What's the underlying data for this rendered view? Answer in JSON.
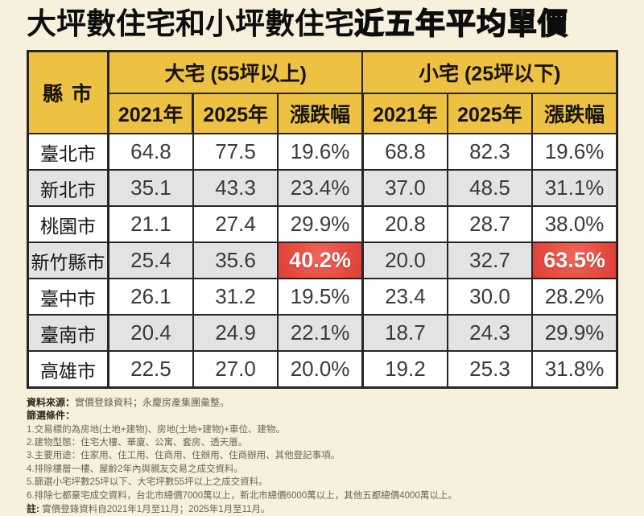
{
  "title": {
    "part1": "大坪數住宅和小坪數住宅",
    "part2": "近五年平均單價"
  },
  "table": {
    "corner": "縣 市",
    "group1": "大宅 (55坪以上)",
    "group2": "小宅 (25坪以下)",
    "cols": {
      "y1": "2021年",
      "y2": "2025年",
      "chg": "漲跌幅"
    },
    "rows": [
      {
        "city": "臺北市",
        "values": [
          "64.8",
          "77.5",
          "19.6%",
          "68.8",
          "82.3",
          "19.6%"
        ]
      },
      {
        "city": "新北市",
        "values": [
          "35.1",
          "43.3",
          "23.4%",
          "37.0",
          "48.5",
          "31.1%"
        ]
      },
      {
        "city": "桃園市",
        "values": [
          "21.1",
          "27.4",
          "29.9%",
          "20.8",
          "28.7",
          "38.0%"
        ]
      },
      {
        "city": "新竹縣市",
        "values": [
          "25.4",
          "35.6",
          "40.2%",
          "20.0",
          "32.7",
          "63.5%"
        ],
        "highlight": [
          2,
          5
        ]
      },
      {
        "city": "臺中市",
        "values": [
          "26.1",
          "31.2",
          "19.5%",
          "23.4",
          "30.0",
          "28.2%"
        ]
      },
      {
        "city": "臺南市",
        "values": [
          "20.4",
          "24.9",
          "22.1%",
          "18.7",
          "24.3",
          "29.9%"
        ]
      },
      {
        "city": "高雄市",
        "values": [
          "22.5",
          "27.0",
          "20.0%",
          "19.2",
          "25.3",
          "31.8%"
        ]
      }
    ]
  },
  "chart_data": {
    "type": "table",
    "title": "大坪數住宅和小坪數住宅近五年平均單價",
    "column_groups": [
      "大宅 (55坪以上)",
      "小宅 (25坪以下)"
    ],
    "categories": [
      "臺北市",
      "新北市",
      "桃園市",
      "新竹縣市",
      "臺中市",
      "臺南市",
      "高雄市"
    ],
    "series": [
      {
        "name": "大宅2021年",
        "values": [
          64.8,
          35.1,
          21.1,
          25.4,
          26.1,
          20.4,
          22.5
        ]
      },
      {
        "name": "大宅2025年",
        "values": [
          77.5,
          43.3,
          27.4,
          35.6,
          31.2,
          24.9,
          27.0
        ]
      },
      {
        "name": "大宅漲跌幅%",
        "values": [
          19.6,
          23.4,
          29.9,
          40.2,
          19.5,
          22.1,
          20.0
        ]
      },
      {
        "name": "小宅2021年",
        "values": [
          68.8,
          37.0,
          20.8,
          20.0,
          23.4,
          18.7,
          19.2
        ]
      },
      {
        "name": "小宅2025年",
        "values": [
          82.3,
          48.5,
          28.7,
          32.7,
          30.0,
          24.3,
          25.3
        ]
      },
      {
        "name": "小宅漲跌幅%",
        "values": [
          19.6,
          31.1,
          38.0,
          63.5,
          28.2,
          29.9,
          31.8
        ]
      }
    ],
    "highlighted_cells": [
      {
        "city": "新竹縣市",
        "series": "大宅漲跌幅%",
        "value": "40.2%"
      },
      {
        "city": "新竹縣市",
        "series": "小宅漲跌幅%",
        "value": "63.5%"
      }
    ]
  },
  "footer": {
    "source_label": "資料來源：",
    "source_text": "實價登錄資料；永慶房產集團彙整。",
    "conditions_label": "篩選條件：",
    "conditions": [
      "1.交易標的為房地(土地+建物)、房地(土地+建物)+車位、建物。",
      "2.建物型態：住宅大樓、華廈、公寓、套房、透天厝。",
      "3.主要用途：住家用、住工用、住商用、住辦用、住商辦用、其他登記事項。",
      "4.排除樓層一樓、屋齡2年內與親友交易之成交資料。",
      "5.篩選小宅坪數25坪以下、大宅坪數55坪以上之成交資料。",
      "6.排除七都豪宅成交資料，台北市總價7000萬以上，新北市總價6000萬以上，其他五都總價4000萬以上。"
    ],
    "note_label": "註:",
    "note_text": "實價登錄資料自2021年1月至11月；2025年1月至11月。"
  },
  "colors": {
    "background": "#f7f0dc",
    "header_yellow": "#edc242",
    "row_alt_gray": "#e3e3e3",
    "highlight_red": "#e74c41",
    "border": "#262626",
    "highlight_text": "#ffffff"
  }
}
